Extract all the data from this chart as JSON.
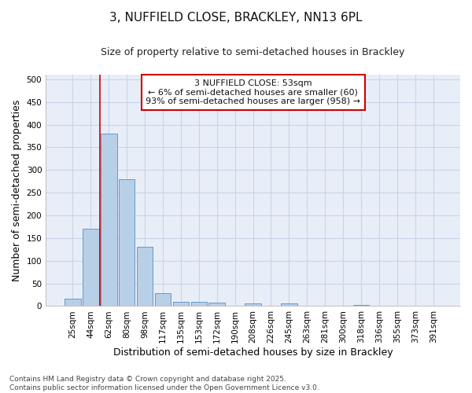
{
  "title_line1": "3, NUFFIELD CLOSE, BRACKLEY, NN13 6PL",
  "title_line2": "Size of property relative to semi-detached houses in Brackley",
  "xlabel": "Distribution of semi-detached houses by size in Brackley",
  "ylabel": "Number of semi-detached properties",
  "categories": [
    "25sqm",
    "44sqm",
    "62sqm",
    "80sqm",
    "98sqm",
    "117sqm",
    "135sqm",
    "153sqm",
    "172sqm",
    "190sqm",
    "208sqm",
    "226sqm",
    "245sqm",
    "263sqm",
    "281sqm",
    "300sqm",
    "318sqm",
    "336sqm",
    "355sqm",
    "373sqm",
    "391sqm"
  ],
  "values": [
    17,
    170,
    380,
    280,
    130,
    28,
    10,
    9,
    7,
    0,
    6,
    0,
    6,
    0,
    0,
    0,
    3,
    0,
    0,
    0,
    0
  ],
  "bar_color": "#b8cfe8",
  "bar_edge_color": "#6699cc",
  "vline_x": 1.5,
  "vline_color": "#cc0000",
  "annotation_text": "3 NUFFIELD CLOSE: 53sqm\n← 6% of semi-detached houses are smaller (60)\n93% of semi-detached houses are larger (958) →",
  "annotation_box_color": "#ffffff",
  "annotation_box_edge": "#cc0000",
  "ylim": [
    0,
    510
  ],
  "yticks": [
    0,
    50,
    100,
    150,
    200,
    250,
    300,
    350,
    400,
    450,
    500
  ],
  "grid_color": "#c8d4e8",
  "background_color": "#e8eef8",
  "footnote": "Contains HM Land Registry data © Crown copyright and database right 2025.\nContains public sector information licensed under the Open Government Licence v3.0.",
  "title_fontsize": 11,
  "subtitle_fontsize": 9,
  "axis_label_fontsize": 9,
  "tick_fontsize": 7.5,
  "annotation_fontsize": 8,
  "footnote_fontsize": 6.5
}
